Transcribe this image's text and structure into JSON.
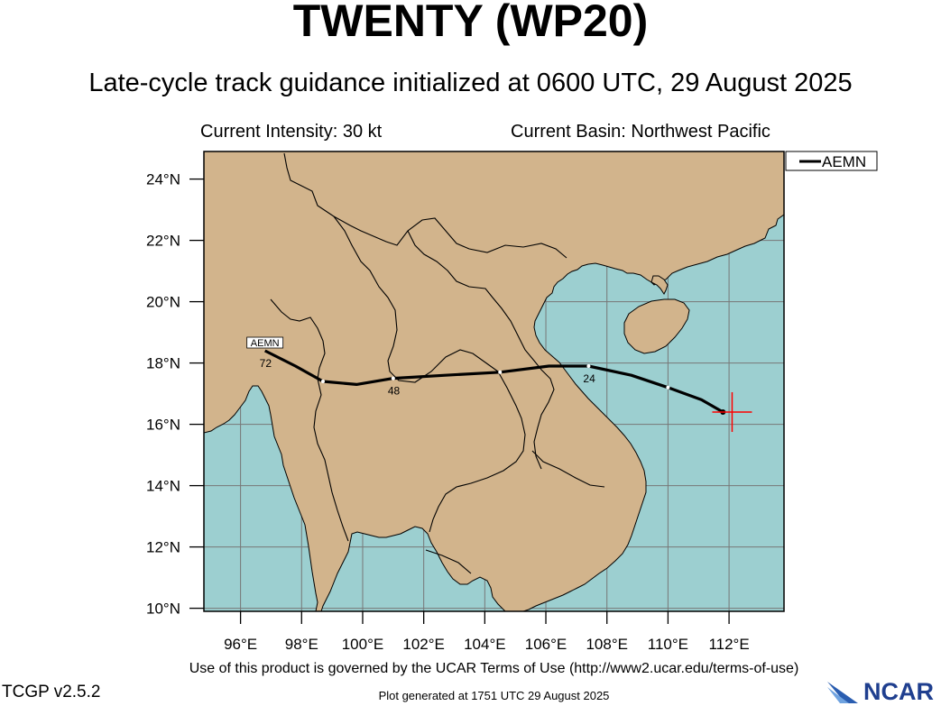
{
  "header": {
    "title": "TWENTY (WP20)",
    "subtitle": "Late-cycle track guidance initialized at 0600 UTC, 29 August 2025",
    "intensity": "Current Intensity: 30 kt",
    "basin": "Current Basin: Northwest Pacific"
  },
  "map": {
    "lat_labels": [
      "24°N",
      "22°N",
      "20°N",
      "18°N",
      "16°N",
      "14°N",
      "12°N",
      "10°N"
    ],
    "lon_labels": [
      "96°E",
      "98°E",
      "100°E",
      "102°E",
      "104°E",
      "106°E",
      "108°E",
      "110°E",
      "112°E"
    ],
    "extent": {
      "lon_min": 94.8,
      "lon_max": 113.8,
      "lat_min": 9.9,
      "lat_max": 24.9
    },
    "colors": {
      "land": "#d2b48c",
      "ocean": "#9ccfd0",
      "track": "#000000",
      "current_position": "#ff0000"
    },
    "legend": {
      "label": "AEMN"
    },
    "track": {
      "model": "AEMN",
      "points": [
        {
          "hour": 0,
          "lon": 111.8,
          "lat": 16.4
        },
        {
          "hour": 6,
          "lon": 111.1,
          "lat": 16.8
        },
        {
          "hour": 12,
          "lon": 110.0,
          "lat": 17.2
        },
        {
          "hour": 18,
          "lon": 108.8,
          "lat": 17.6
        },
        {
          "hour": 24,
          "lon": 107.4,
          "lat": 17.9
        },
        {
          "hour": 30,
          "lon": 106.1,
          "lat": 17.9
        },
        {
          "hour": 36,
          "lon": 104.5,
          "lat": 17.7
        },
        {
          "hour": 42,
          "lon": 102.7,
          "lat": 17.6
        },
        {
          "hour": 48,
          "lon": 101.0,
          "lat": 17.5
        },
        {
          "hour": 54,
          "lon": 99.8,
          "lat": 17.3
        },
        {
          "hour": 60,
          "lon": 98.7,
          "lat": 17.4
        },
        {
          "hour": 66,
          "lon": 97.8,
          "lat": 17.9
        },
        {
          "hour": 72,
          "lon": 96.8,
          "lat": 18.4
        }
      ],
      "hour_labels": [
        {
          "text": "24",
          "hour": 24
        },
        {
          "text": "48",
          "hour": 48
        },
        {
          "text": "72",
          "hour": 72
        }
      ],
      "end_label": "AEMN"
    },
    "current_position": {
      "lon": 112.1,
      "lat": 16.4
    }
  },
  "footer": {
    "terms": "Use of this product is governed by the UCAR Terms of Use (http://www2.ucar.edu/terms-of-use)",
    "version": "TCGP v2.5.2",
    "generated": "Plot generated at 1751 UTC   29 August 2025",
    "logo_text": "NCAR"
  }
}
